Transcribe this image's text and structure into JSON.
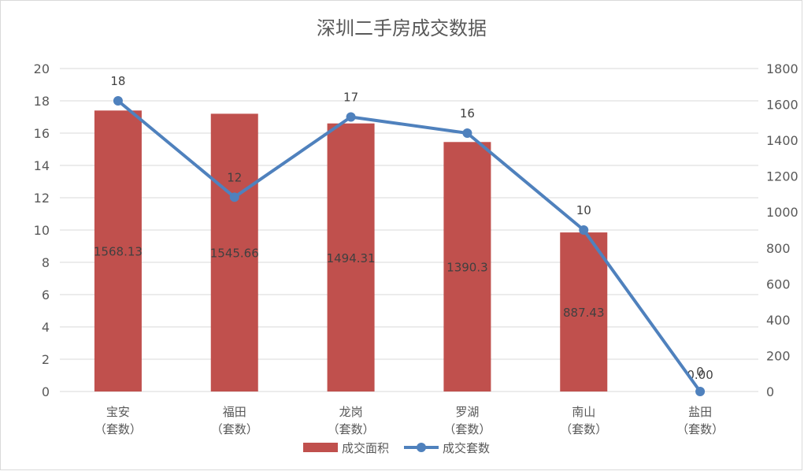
{
  "chart_data": {
    "type": "bar",
    "title": "深圳二手房成交数据",
    "categories": [
      "宝安（套数）",
      "福田（套数）",
      "龙岗（套数）",
      "罗湖（套数）",
      "南山（套数）",
      "盐田（套数）"
    ],
    "category_lines": [
      [
        "宝安",
        "（套数）"
      ],
      [
        "福田",
        "（套数）"
      ],
      [
        "龙岗",
        "（套数）"
      ],
      [
        "罗湖",
        "（套数）"
      ],
      [
        "南山",
        "（套数）"
      ],
      [
        "盐田",
        "（套数）"
      ]
    ],
    "series": [
      {
        "name": "成交面积",
        "type": "bar",
        "axis": "left",
        "values": [
          17.4,
          17.2,
          16.6,
          15.45,
          9.85,
          0
        ],
        "labels": [
          "1568.13",
          "1545.66",
          "1494.31",
          "1390.3",
          "887.43",
          "0.00"
        ],
        "color": "#c0504d"
      },
      {
        "name": "成交套数",
        "type": "line",
        "axis": "right",
        "values": [
          1620,
          1083,
          1530,
          1440,
          900,
          0
        ],
        "labels": [
          "18",
          "12",
          "17",
          "16",
          "10",
          "0"
        ],
        "color": "#4f81bd"
      }
    ],
    "y_left": {
      "ylim": [
        0,
        20
      ],
      "ticks": [
        "0",
        "2",
        "4",
        "6",
        "8",
        "10",
        "12",
        "14",
        "16",
        "18",
        "20"
      ]
    },
    "y_right": {
      "ylim": [
        0,
        1800
      ],
      "ticks": [
        "0",
        "200",
        "400",
        "600",
        "800",
        "1000",
        "1200",
        "1400",
        "1600",
        "1800"
      ]
    },
    "grid": true,
    "legend": "bottom"
  }
}
